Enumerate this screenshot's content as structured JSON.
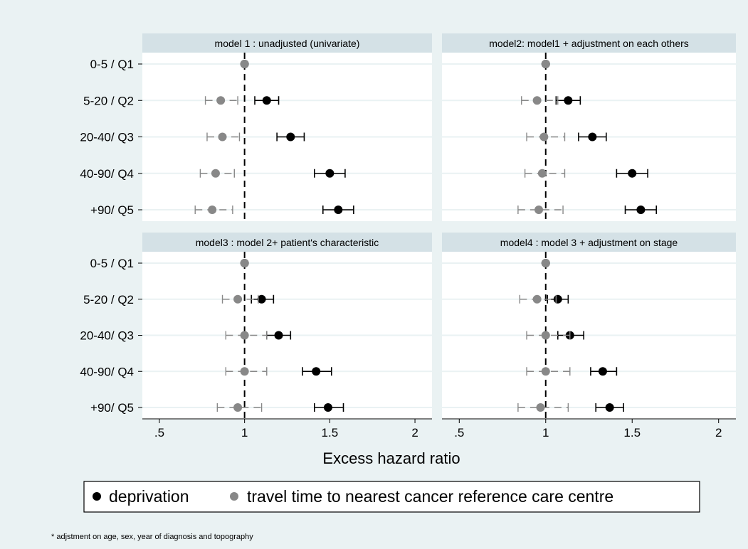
{
  "chart_data": {
    "type": "scatter",
    "panels": [
      {
        "title": "model 1 : unadjusted (univariate)",
        "series": [
          {
            "values": [
              1.0,
              1.13,
              1.27,
              1.5,
              1.55
            ],
            "lo": [
              1.0,
              1.06,
              1.19,
              1.41,
              1.46
            ],
            "hi": [
              1.0,
              1.2,
              1.35,
              1.59,
              1.64
            ]
          },
          {
            "values": [
              1.0,
              0.86,
              0.87,
              0.83,
              0.81
            ],
            "lo": [
              1.0,
              0.77,
              0.78,
              0.74,
              0.71
            ],
            "hi": [
              1.0,
              0.96,
              0.97,
              0.94,
              0.93
            ]
          }
        ]
      },
      {
        "title": "model2: model1 + adjustment on each others",
        "series": [
          {
            "values": [
              1.0,
              1.13,
              1.27,
              1.5,
              1.55
            ],
            "lo": [
              1.0,
              1.06,
              1.19,
              1.41,
              1.46
            ],
            "hi": [
              1.0,
              1.2,
              1.35,
              1.59,
              1.64
            ]
          },
          {
            "values": [
              1.0,
              0.95,
              0.99,
              0.98,
              0.96
            ],
            "lo": [
              1.0,
              0.86,
              0.89,
              0.88,
              0.84
            ],
            "hi": [
              1.0,
              1.07,
              1.11,
              1.11,
              1.1
            ]
          }
        ]
      },
      {
        "title": "model3 : model 2+ patient's characteristic",
        "series": [
          {
            "values": [
              1.0,
              1.1,
              1.2,
              1.42,
              1.49
            ],
            "lo": [
              1.0,
              1.04,
              1.13,
              1.34,
              1.41
            ],
            "hi": [
              1.0,
              1.17,
              1.27,
              1.51,
              1.58
            ]
          },
          {
            "values": [
              1.0,
              0.96,
              1.0,
              1.0,
              0.96
            ],
            "lo": [
              1.0,
              0.87,
              0.89,
              0.89,
              0.84
            ],
            "hi": [
              1.0,
              1.08,
              1.13,
              1.13,
              1.1
            ]
          }
        ]
      },
      {
        "title": "model4 : model 3 + adjustment on stage",
        "series": [
          {
            "values": [
              1.0,
              1.07,
              1.14,
              1.33,
              1.37
            ],
            "lo": [
              1.0,
              1.01,
              1.07,
              1.26,
              1.29
            ],
            "hi": [
              1.0,
              1.13,
              1.22,
              1.41,
              1.45
            ]
          },
          {
            "values": [
              1.0,
              0.95,
              1.0,
              1.0,
              0.97
            ],
            "lo": [
              1.0,
              0.85,
              0.89,
              0.89,
              0.84
            ],
            "hi": [
              1.0,
              1.06,
              1.14,
              1.14,
              1.13
            ]
          }
        ]
      }
    ],
    "categories": [
      "0-5 / Q1",
      "5-20 / Q2",
      "20-40/ Q3",
      "40-90/ Q4",
      "+90/ Q5"
    ],
    "xticks": [
      ".5",
      "1",
      "1.5",
      "2"
    ],
    "xtick_values": [
      0.5,
      1,
      1.5,
      2
    ],
    "xlim": [
      0.4,
      2.1
    ],
    "reference_line": 1,
    "xlabel": "Excess hazard ratio",
    "legend": {
      "placement": "bottom",
      "entries": [
        {
          "label": "deprivation",
          "color": "#000000"
        },
        {
          "label": "travel time to nearest cancer reference care centre",
          "color": "#888888"
        }
      ]
    },
    "note": "* adjstment on age, sex, year of diagnosis and topography",
    "grid": true
  }
}
